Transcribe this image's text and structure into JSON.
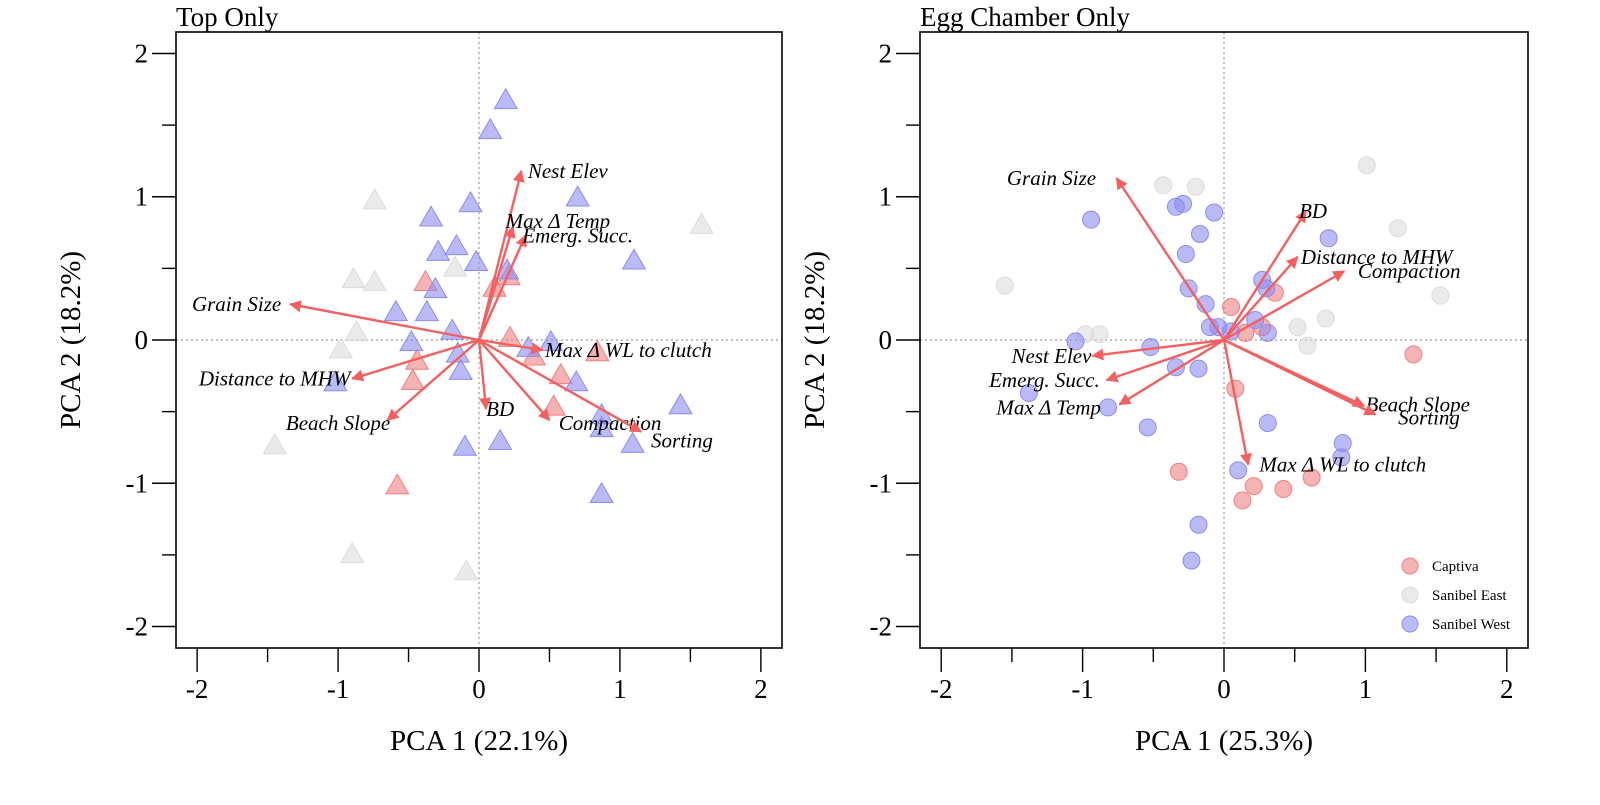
{
  "colors": {
    "captiva": "#f08080",
    "sanibel_east": "#dcdcdc",
    "sanibel_west": "#8c8cf0",
    "arrow": "#f46060",
    "axis": "#000000",
    "zero_line": "#999999"
  },
  "legend": {
    "items": [
      {
        "label": "Captiva",
        "group": "captiva"
      },
      {
        "label": "Sanibel East",
        "group": "sanibel_east"
      },
      {
        "label": "Sanibel West",
        "group": "sanibel_west"
      }
    ]
  },
  "chart_data": [
    {
      "type": "scatter",
      "title": "Top Only",
      "xlabel": "PCA 1 (22.1%)",
      "ylabel": "PCA 2 (18.2%)",
      "xlim": [
        -2.15,
        2.15
      ],
      "ylim": [
        -2.15,
        2.15
      ],
      "xticks": [
        "-2",
        "-1",
        "0",
        "1",
        "2"
      ],
      "yticks": [
        "-2",
        "-1",
        "0",
        "1",
        "2"
      ],
      "tick_values": [
        -2,
        -1,
        0,
        1,
        2
      ],
      "marker": "triangle",
      "series": [
        {
          "group": "captiva",
          "points": [
            [
              -0.38,
              0.4
            ],
            [
              -0.44,
              -0.15
            ],
            [
              -0.47,
              -0.29
            ],
            [
              -0.58,
              -1.02
            ],
            [
              0.21,
              0.44
            ],
            [
              0.11,
              0.36
            ],
            [
              0.22,
              0.01
            ],
            [
              0.39,
              -0.12
            ],
            [
              0.58,
              -0.25
            ],
            [
              0.53,
              -0.47
            ],
            [
              0.84,
              -0.09
            ]
          ]
        },
        {
          "group": "sanibel_east",
          "points": [
            [
              -0.74,
              0.97
            ],
            [
              -0.89,
              0.42
            ],
            [
              -0.74,
              0.4
            ],
            [
              -0.87,
              0.05
            ],
            [
              -0.98,
              -0.07
            ],
            [
              -1.45,
              -0.74
            ],
            [
              -0.9,
              -1.5
            ],
            [
              -0.09,
              -1.62
            ],
            [
              -0.17,
              0.5
            ],
            [
              1.58,
              0.8
            ]
          ]
        },
        {
          "group": "sanibel_west",
          "points": [
            [
              0.19,
              1.67
            ],
            [
              0.08,
              1.46
            ],
            [
              0.7,
              0.99
            ],
            [
              -0.34,
              0.85
            ],
            [
              -0.06,
              0.95
            ],
            [
              -0.29,
              0.61
            ],
            [
              -0.16,
              0.65
            ],
            [
              -0.31,
              0.35
            ],
            [
              -0.37,
              0.19
            ],
            [
              -0.59,
              0.19
            ],
            [
              -0.19,
              0.06
            ],
            [
              -0.02,
              0.54
            ],
            [
              0.2,
              0.48
            ],
            [
              1.1,
              0.55
            ],
            [
              -0.48,
              -0.02
            ],
            [
              -0.15,
              -0.1
            ],
            [
              -0.13,
              -0.22
            ],
            [
              0.35,
              -0.06
            ],
            [
              0.51,
              -0.02
            ],
            [
              0.69,
              -0.3
            ],
            [
              0.87,
              -0.53
            ],
            [
              0.87,
              -0.62
            ],
            [
              1.09,
              -0.73
            ],
            [
              1.43,
              -0.46
            ],
            [
              0.15,
              -0.71
            ],
            [
              -0.1,
              -0.75
            ],
            [
              0.87,
              -1.08
            ],
            [
              -1.02,
              -0.3
            ]
          ]
        }
      ],
      "arrows": [
        {
          "label": "Grain Size",
          "x": -1.34,
          "y": 0.25,
          "lx": -1.72,
          "ly": 0.25
        },
        {
          "label": "Distance to MHW",
          "x": -0.9,
          "y": -0.27,
          "lx": -1.45,
          "ly": -0.27
        },
        {
          "label": "Beach Slope",
          "x": -0.65,
          "y": -0.56,
          "lx": -1.0,
          "ly": -0.58
        },
        {
          "label": "Nest Elev",
          "x": 0.3,
          "y": 1.18,
          "lx": 0.63,
          "ly": 1.18
        },
        {
          "label": "Max Δ Temp",
          "x": 0.24,
          "y": 0.79,
          "lx": 0.56,
          "ly": 0.83
        },
        {
          "label": "Emerg. Succ.",
          "x": 0.33,
          "y": 0.73,
          "lx": 0.7,
          "ly": 0.73
        },
        {
          "label": "Max Δ WL to clutch",
          "x": 0.45,
          "y": -0.07,
          "lx": 1.06,
          "ly": -0.07
        },
        {
          "label": "BD",
          "x": 0.05,
          "y": -0.48,
          "lx": 0.15,
          "ly": -0.48
        },
        {
          "label": "Compaction",
          "x": 0.5,
          "y": -0.56,
          "lx": 0.93,
          "ly": -0.58
        },
        {
          "label": "Sorting",
          "x": 1.15,
          "y": -0.64,
          "lx": 1.44,
          "ly": -0.7
        }
      ]
    },
    {
      "type": "scatter",
      "title": "Egg Chamber Only",
      "xlabel": "PCA 1 (25.3%)",
      "ylabel": "PCA 2 (18.2%)",
      "xlim": [
        -2.15,
        2.15
      ],
      "ylim": [
        -2.15,
        2.15
      ],
      "xticks": [
        "-2",
        "-1",
        "0",
        "1",
        "2"
      ],
      "yticks": [
        "-2",
        "-1",
        "0",
        "1",
        "2"
      ],
      "tick_values": [
        -2,
        -1,
        0,
        1,
        2
      ],
      "marker": "circle",
      "series": [
        {
          "group": "captiva",
          "points": [
            [
              0.05,
              0.23
            ],
            [
              0.36,
              0.33
            ],
            [
              0.27,
              0.09
            ],
            [
              0.15,
              0.05
            ],
            [
              0.08,
              -0.34
            ],
            [
              1.34,
              -0.1
            ],
            [
              -0.32,
              -0.92
            ],
            [
              0.13,
              -1.12
            ],
            [
              0.21,
              -1.02
            ],
            [
              0.42,
              -1.04
            ],
            [
              0.62,
              -0.96
            ]
          ]
        },
        {
          "group": "sanibel_east",
          "points": [
            [
              -0.43,
              1.08
            ],
            [
              -0.2,
              1.07
            ],
            [
              1.01,
              1.22
            ],
            [
              1.23,
              0.78
            ],
            [
              1.53,
              0.31
            ],
            [
              -1.55,
              0.38
            ],
            [
              -0.98,
              0.04
            ],
            [
              -0.88,
              0.04
            ],
            [
              0.52,
              0.09
            ],
            [
              0.72,
              0.15
            ],
            [
              0.59,
              -0.04
            ]
          ]
        },
        {
          "group": "sanibel_west",
          "points": [
            [
              -0.94,
              0.84
            ],
            [
              -0.34,
              0.93
            ],
            [
              -0.29,
              0.95
            ],
            [
              -0.07,
              0.89
            ],
            [
              -0.17,
              0.74
            ],
            [
              -0.27,
              0.6
            ],
            [
              0.74,
              0.71
            ],
            [
              -0.25,
              0.36
            ],
            [
              -0.13,
              0.25
            ],
            [
              -0.1,
              0.09
            ],
            [
              0.05,
              0.06
            ],
            [
              0.3,
              0.36
            ],
            [
              0.27,
              0.42
            ],
            [
              0.22,
              0.14
            ],
            [
              0.31,
              0.05
            ],
            [
              -0.04,
              0.09
            ],
            [
              -1.05,
              -0.01
            ],
            [
              -0.52,
              -0.05
            ],
            [
              -0.34,
              -0.19
            ],
            [
              -0.18,
              -0.2
            ],
            [
              -1.38,
              -0.37
            ],
            [
              -0.82,
              -0.47
            ],
            [
              -0.54,
              -0.61
            ],
            [
              0.31,
              -0.58
            ],
            [
              0.84,
              -0.72
            ],
            [
              0.83,
              -0.82
            ],
            [
              0.1,
              -0.91
            ],
            [
              -0.18,
              -1.29
            ],
            [
              -0.23,
              -1.54
            ]
          ]
        }
      ],
      "arrows": [
        {
          "label": "Grain Size",
          "x": -0.76,
          "y": 1.13,
          "lx": -1.22,
          "ly": 1.13
        },
        {
          "label": "Nest Elev",
          "x": -0.93,
          "y": -0.11,
          "lx": -1.22,
          "ly": -0.11
        },
        {
          "label": "Emerg. Succ.",
          "x": -0.83,
          "y": -0.28,
          "lx": -1.27,
          "ly": -0.28
        },
        {
          "label": "Max Δ Temp",
          "x": -0.74,
          "y": -0.45,
          "lx": -1.24,
          "ly": -0.47
        },
        {
          "label": "BD",
          "x": 0.58,
          "y": 0.9,
          "lx": 0.63,
          "ly": 0.9
        },
        {
          "label": "Distance to MHW",
          "x": 0.52,
          "y": 0.58,
          "lx": 1.08,
          "ly": 0.58
        },
        {
          "label": "Compaction",
          "x": 0.85,
          "y": 0.48,
          "lx": 1.31,
          "ly": 0.48
        },
        {
          "label": "Beach Slope",
          "x": 0.99,
          "y": -0.46,
          "lx": 1.37,
          "ly": -0.45
        },
        {
          "label": "Sorting",
          "x": 1.07,
          "y": -0.52,
          "lx": 1.45,
          "ly": -0.54
        },
        {
          "label": "Max Δ WL to clutch",
          "x": 0.17,
          "y": -0.87,
          "lx": 0.84,
          "ly": -0.87
        }
      ]
    }
  ]
}
